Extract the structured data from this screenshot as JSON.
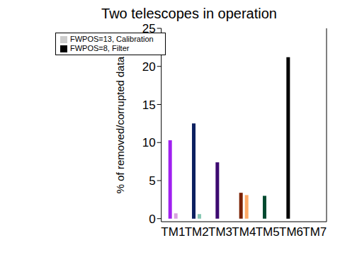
{
  "chart_data": {
    "type": "bar",
    "title": "Two telescopes in operation",
    "y_label": "% of removed/corrupted data",
    "categories": [
      "TM1",
      "TM2",
      "TM3",
      "TM4",
      "TM5",
      "TM6",
      "TM7"
    ],
    "series": [
      {
        "name": "FWPOS=8, Filter",
        "color": "#000000",
        "colors": [
          "#a020f0",
          "#0c2060",
          "#3c0a70",
          "#7a2000",
          "#004a30",
          "#000000",
          "#000000"
        ],
        "values": [
          10.3,
          12.5,
          7.4,
          3.4,
          3.0,
          21.2,
          0
        ]
      },
      {
        "name": "FWPOS=13, Calibration",
        "color": "#cccccc",
        "colors": [
          "#d8a0e0",
          "#88c8b4",
          "#a090c0",
          "#ffaa66",
          "#80b0a0",
          "#999999",
          "#cccccc"
        ],
        "values": [
          0.7,
          0.6,
          0,
          3.1,
          0,
          0,
          0
        ]
      }
    ],
    "ylim": [
      -0.4,
      25
    ],
    "yticks": [
      0,
      5,
      10,
      15,
      20,
      25
    ],
    "legend": "upper left",
    "grid": false
  }
}
